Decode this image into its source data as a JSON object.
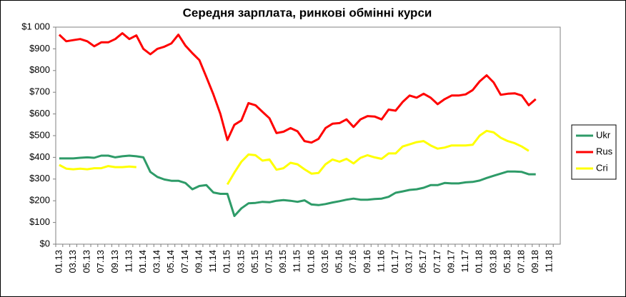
{
  "chart_data": {
    "type": "line",
    "title": "Середня зарплата, ринкові обмінні курси",
    "categories": [
      "01.13",
      null,
      "03.13",
      null,
      "05.13",
      null,
      "07.13",
      null,
      "09.13",
      null,
      "11.13",
      null,
      "01.14",
      null,
      "03.14",
      null,
      "05.14",
      null,
      "07.14",
      null,
      "09.14",
      null,
      "11.14",
      null,
      "01.15",
      null,
      "03.15",
      null,
      "05.15",
      null,
      "07.15",
      null,
      "09.15",
      null,
      "11.15",
      null,
      "01.16",
      null,
      "03.16",
      null,
      "05.16",
      null,
      "07.16",
      null,
      "09.16",
      null,
      "11.16",
      null,
      "01.17",
      null,
      "03.17",
      null,
      "05.17",
      null,
      "07.17",
      null,
      "09.17",
      null,
      "11.17",
      null,
      "01.18",
      null,
      "03.18",
      null,
      "05.18",
      null,
      "07.18",
      null,
      "09.18",
      null,
      "11.18",
      null
    ],
    "series": [
      {
        "name": "Ukr",
        "color": "#2e9b68",
        "values": [
          395,
          395,
          395,
          398,
          400,
          398,
          408,
          408,
          400,
          405,
          408,
          405,
          400,
          333,
          310,
          298,
          292,
          292,
          282,
          253,
          268,
          272,
          238,
          232,
          232,
          130,
          165,
          188,
          190,
          195,
          193,
          200,
          203,
          200,
          195,
          202,
          183,
          180,
          185,
          192,
          198,
          205,
          210,
          205,
          205,
          208,
          210,
          218,
          237,
          243,
          250,
          253,
          260,
          272,
          272,
          282,
          280,
          280,
          285,
          287,
          293,
          305,
          315,
          325,
          335,
          335,
          333,
          322,
          322,
          null,
          null,
          null
        ]
      },
      {
        "name": "Rus",
        "color": "#ff0000",
        "values": [
          965,
          935,
          940,
          945,
          935,
          912,
          930,
          930,
          945,
          972,
          945,
          962,
          900,
          875,
          900,
          910,
          925,
          965,
          915,
          880,
          848,
          770,
          690,
          600,
          480,
          550,
          570,
          650,
          640,
          610,
          580,
          512,
          518,
          535,
          520,
          475,
          468,
          485,
          535,
          555,
          558,
          575,
          540,
          575,
          590,
          588,
          575,
          620,
          615,
          655,
          685,
          675,
          693,
          675,
          645,
          668,
          685,
          685,
          690,
          710,
          750,
          778,
          745,
          688,
          693,
          695,
          685,
          640,
          668,
          null,
          null,
          null
        ]
      },
      {
        "name": "Cri",
        "color": "#ffff00",
        "values": [
          365,
          348,
          345,
          348,
          345,
          350,
          350,
          360,
          355,
          355,
          358,
          355,
          null,
          null,
          null,
          null,
          null,
          null,
          null,
          null,
          null,
          null,
          null,
          null,
          275,
          330,
          380,
          413,
          410,
          385,
          390,
          343,
          350,
          375,
          368,
          345,
          325,
          328,
          368,
          390,
          380,
          393,
          372,
          398,
          410,
          400,
          393,
          418,
          418,
          450,
          460,
          470,
          475,
          455,
          440,
          445,
          455,
          455,
          455,
          458,
          500,
          522,
          515,
          490,
          475,
          465,
          450,
          430,
          null,
          null,
          null,
          null
        ]
      }
    ],
    "ylim": [
      0,
      1000
    ],
    "yticks": [
      {
        "value": 0,
        "label": "$0"
      },
      {
        "value": 100,
        "label": "$100"
      },
      {
        "value": 200,
        "label": "$200"
      },
      {
        "value": 300,
        "label": "$300"
      },
      {
        "value": 400,
        "label": "$400"
      },
      {
        "value": 500,
        "label": "$500"
      },
      {
        "value": 600,
        "label": "$600"
      },
      {
        "value": 700,
        "label": "$700"
      },
      {
        "value": 800,
        "label": "$800"
      },
      {
        "value": 900,
        "label": "$900"
      },
      {
        "value": 1000,
        "label": "$1 000"
      }
    ],
    "grid": false,
    "legend": "right"
  }
}
